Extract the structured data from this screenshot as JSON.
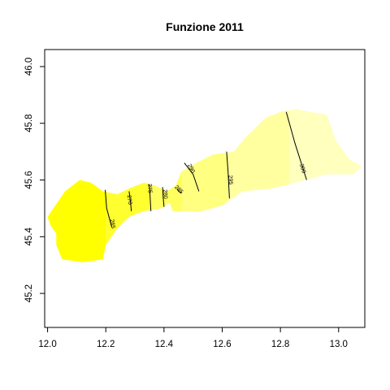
{
  "chart_data": {
    "type": "heatmap",
    "title": "Funzione 2011",
    "xlabel": "",
    "ylabel": "",
    "xlim": [
      11.99,
      13.09
    ],
    "ylim": [
      45.08,
      46.06
    ],
    "x_ticks": [
      "12.0",
      "12.2",
      "12.4",
      "12.6",
      "12.8",
      "13.0"
    ],
    "y_ticks": [
      "45.2",
      "45.4",
      "45.6",
      "45.8",
      "46.0"
    ],
    "x_tick_values": [
      12.0,
      12.2,
      12.4,
      12.6,
      12.8,
      13.0
    ],
    "y_tick_values": [
      45.2,
      45.4,
      45.6,
      45.8,
      46.0
    ],
    "grid": false,
    "legend": "none",
    "colors": {
      "band_lowest": "#ffff00",
      "band_2": "#ffff30",
      "band_3": "#ffff60",
      "band_4": "#ffff80",
      "band_5": "#ffffa0",
      "band_highest": "#ffffbe",
      "contour_line": "#000000"
    },
    "bands": [
      {
        "from_x": 11.99,
        "to_x": 12.2,
        "color": "#ffff00"
      },
      {
        "from_x": 12.2,
        "to_x": 12.35,
        "color": "#ffff30"
      },
      {
        "from_x": 12.35,
        "to_x": 12.46,
        "color": "#ffff60"
      },
      {
        "from_x": 12.46,
        "to_x": 12.62,
        "color": "#ffff80"
      },
      {
        "from_x": 12.62,
        "to_x": 12.83,
        "color": "#ffffa0"
      },
      {
        "from_x": 12.83,
        "to_x": 13.09,
        "color": "#ffffbe"
      }
    ],
    "region_outline": [
      [
        12.03,
        45.41
      ],
      [
        12.01,
        45.44
      ],
      [
        12.0,
        45.47
      ],
      [
        12.02,
        45.5
      ],
      [
        12.06,
        45.56
      ],
      [
        12.11,
        45.6
      ],
      [
        12.15,
        45.59
      ],
      [
        12.19,
        45.56
      ],
      [
        12.24,
        45.55
      ],
      [
        12.28,
        45.57
      ],
      [
        12.33,
        45.59
      ],
      [
        12.37,
        45.58
      ],
      [
        12.41,
        45.56
      ],
      [
        12.44,
        45.58
      ],
      [
        12.46,
        45.63
      ],
      [
        12.51,
        45.66
      ],
      [
        12.57,
        45.69
      ],
      [
        12.64,
        45.7
      ],
      [
        12.68,
        45.75
      ],
      [
        12.72,
        45.79
      ],
      [
        12.75,
        45.82
      ],
      [
        12.8,
        45.84
      ],
      [
        12.85,
        45.85
      ],
      [
        12.96,
        45.83
      ],
      [
        12.99,
        45.74
      ],
      [
        13.04,
        45.67
      ],
      [
        13.08,
        45.65
      ],
      [
        13.05,
        45.62
      ],
      [
        12.96,
        45.62
      ],
      [
        12.85,
        45.59
      ],
      [
        12.77,
        45.57
      ],
      [
        12.67,
        45.56
      ],
      [
        12.6,
        45.51
      ],
      [
        12.53,
        45.49
      ],
      [
        12.44,
        45.49
      ],
      [
        12.42,
        45.52
      ],
      [
        12.39,
        45.5
      ],
      [
        12.33,
        45.49
      ],
      [
        12.28,
        45.47
      ],
      [
        12.24,
        45.43
      ],
      [
        12.2,
        45.37
      ],
      [
        12.19,
        45.32
      ],
      [
        12.12,
        45.31
      ],
      [
        12.05,
        45.32
      ],
      [
        12.03,
        45.37
      ]
    ],
    "lagoon_hole": [
      [
        12.42,
        45.52
      ],
      [
        12.45,
        45.53
      ],
      [
        12.48,
        45.55
      ],
      [
        12.52,
        45.54
      ],
      [
        12.5,
        45.51
      ],
      [
        12.46,
        45.49
      ],
      [
        12.43,
        45.49
      ]
    ],
    "contours": [
      {
        "label": "265",
        "points": [
          [
            12.198,
            45.565
          ],
          [
            12.203,
            45.5
          ],
          [
            12.22,
            45.435
          ]
        ],
        "label_at": [
          12.222,
          45.445
        ]
      },
      {
        "label": "270",
        "points": [
          [
            12.28,
            45.56
          ],
          [
            12.285,
            45.52
          ],
          [
            12.288,
            45.49
          ]
        ],
        "label_at": [
          12.28,
          45.53
        ]
      },
      {
        "label": "275",
        "points": [
          [
            12.35,
            45.585
          ],
          [
            12.352,
            45.545
          ],
          [
            12.355,
            45.49
          ]
        ],
        "label_at": [
          12.35,
          45.57
        ]
      },
      {
        "label": "280",
        "points": [
          [
            12.395,
            45.575
          ],
          [
            12.397,
            45.54
          ],
          [
            12.4,
            45.505
          ]
        ],
        "label_at": [
          12.403,
          45.55
        ]
      },
      {
        "label": "285",
        "points": [
          [
            12.445,
            45.57
          ],
          [
            12.45,
            45.56
          ],
          [
            12.46,
            45.555
          ]
        ],
        "label_at": [
          12.45,
          45.565
        ]
      },
      {
        "label": "290",
        "points": [
          [
            12.47,
            45.66
          ],
          [
            12.5,
            45.62
          ],
          [
            12.52,
            45.56
          ]
        ],
        "label_at": [
          12.492,
          45.64
        ]
      },
      {
        "label": "295",
        "points": [
          [
            12.615,
            45.7
          ],
          [
            12.62,
            45.63
          ],
          [
            12.625,
            45.535
          ]
        ],
        "label_at": [
          12.627,
          45.6
        ]
      },
      {
        "label": "300",
        "points": [
          [
            12.82,
            45.84
          ],
          [
            12.85,
            45.73
          ],
          [
            12.89,
            45.6
          ]
        ],
        "label_at": [
          12.875,
          45.64
        ]
      }
    ]
  }
}
